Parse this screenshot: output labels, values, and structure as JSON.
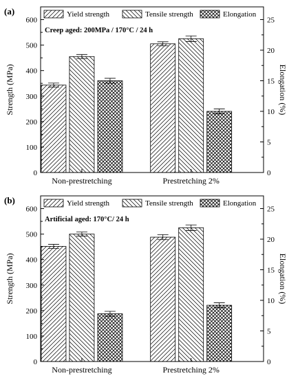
{
  "chart_data": [
    {
      "type": "bar",
      "panel_label": "(a)",
      "annotation": "Creep aged: 200MPa / 170°C / 24 h",
      "categories": [
        "Non-prestretching",
        "Prestretching 2%"
      ],
      "ylabel": "Strength (MPa)",
      "ylabel_right": "Elongation (%)",
      "ylim": [
        0,
        650
      ],
      "yticks": [
        "0",
        "100",
        "200",
        "300",
        "400",
        "500",
        "600"
      ],
      "ylim_right": [
        0,
        27.08
      ],
      "yticks_right": [
        "0",
        "5",
        "10",
        "15",
        "20",
        "25"
      ],
      "legend": "top",
      "series": [
        {
          "name": "Yield strength",
          "axis": "left",
          "pattern": "diag-up",
          "values": [
            343,
            505
          ],
          "errors": [
            8,
            8
          ]
        },
        {
          "name": "Tensile strength",
          "axis": "left",
          "pattern": "diag-down",
          "values": [
            455,
            525
          ],
          "errors": [
            8,
            11
          ]
        },
        {
          "name": "Elongation",
          "axis": "right",
          "pattern": "cross",
          "values": [
            15.0,
            10.0
          ],
          "errors": [
            0.4,
            0.4
          ]
        }
      ]
    },
    {
      "type": "bar",
      "panel_label": "(b)",
      "annotation": "Artificial aged: 170°C/ 24 h",
      "categories": [
        "Non-prestretching",
        "Prestretching 2%"
      ],
      "ylabel": "Strength (MPa)",
      "ylabel_right": "Elongation (%)",
      "ylim": [
        0,
        650
      ],
      "yticks": [
        "0",
        "100",
        "200",
        "300",
        "400",
        "500",
        "600"
      ],
      "ylim_right": [
        0,
        27.08
      ],
      "yticks_right": [
        "0",
        "5",
        "10",
        "15",
        "20",
        "25"
      ],
      "legend": "top",
      "series": [
        {
          "name": "Yield strength",
          "axis": "left",
          "pattern": "diag-up",
          "values": [
            452,
            488
          ],
          "errors": [
            8,
            10
          ]
        },
        {
          "name": "Tensile strength",
          "axis": "left",
          "pattern": "diag-down",
          "values": [
            500,
            525
          ],
          "errors": [
            8,
            11
          ]
        },
        {
          "name": "Elongation",
          "axis": "right",
          "pattern": "cross",
          "values": [
            7.8,
            9.2
          ],
          "errors": [
            0.4,
            0.4
          ]
        }
      ]
    }
  ]
}
